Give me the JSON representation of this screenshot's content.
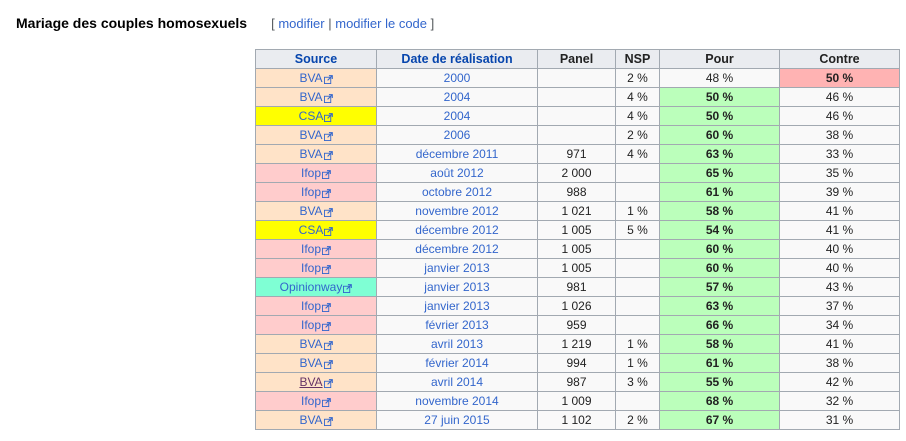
{
  "section": {
    "heading": "Mariage des couples homosexuels",
    "edit_open": "[",
    "edit_link": "modifier",
    "edit_sep": "|",
    "edit_code_link": "modifier le code",
    "edit_close": "]"
  },
  "colors": {
    "source_bva": "#ffe3c8",
    "source_csa": "#ffff00",
    "source_ifop": "#ffcccc",
    "source_opinionway": "#7fffd4",
    "pour_win": "#bbffbb",
    "contre_win": "#ffb3b3",
    "link": "#3366cc",
    "visited_link": "#663366"
  },
  "table": {
    "headers": {
      "source": "Source",
      "date": "Date de réalisation",
      "panel": "Panel",
      "nsp": "NSP",
      "pour": "Pour",
      "contre": "Contre"
    },
    "rows": [
      {
        "source": "BVA",
        "src": "bva",
        "date": "2000",
        "panel": "",
        "nsp": "2 %",
        "pour": "48 %",
        "contre": "50 %",
        "winner": "contre"
      },
      {
        "source": "BVA",
        "src": "bva",
        "date": "2004",
        "panel": "",
        "nsp": "4 %",
        "pour": "50 %",
        "contre": "46 %",
        "winner": "pour"
      },
      {
        "source": "CSA",
        "src": "csa",
        "date": "2004",
        "panel": "",
        "nsp": "4 %",
        "pour": "50 %",
        "contre": "46 %",
        "winner": "pour"
      },
      {
        "source": "BVA",
        "src": "bva",
        "date": "2006",
        "panel": "",
        "nsp": "2 %",
        "pour": "60 %",
        "contre": "38 %",
        "winner": "pour"
      },
      {
        "source": "BVA",
        "src": "bva",
        "date": "décembre 2011",
        "panel": "971",
        "nsp": "4 %",
        "pour": "63 %",
        "contre": "33 %",
        "winner": "pour"
      },
      {
        "source": "Ifop",
        "src": "ifop",
        "date": "août 2012",
        "panel": "2 000",
        "nsp": "",
        "pour": "65 %",
        "contre": "35 %",
        "winner": "pour"
      },
      {
        "source": "Ifop",
        "src": "ifop",
        "date": "octobre 2012",
        "panel": "988",
        "nsp": "",
        "pour": "61 %",
        "contre": "39 %",
        "winner": "pour"
      },
      {
        "source": "BVA",
        "src": "bva",
        "date": "novembre 2012",
        "panel": "1 021",
        "nsp": "1 %",
        "pour": "58 %",
        "contre": "41 %",
        "winner": "pour"
      },
      {
        "source": "CSA",
        "src": "csa",
        "date": "décembre 2012",
        "panel": "1 005",
        "nsp": "5 %",
        "pour": "54 %",
        "contre": "41 %",
        "winner": "pour"
      },
      {
        "source": "Ifop",
        "src": "ifop",
        "date": "décembre 2012",
        "panel": "1 005",
        "nsp": "",
        "pour": "60 %",
        "contre": "40 %",
        "winner": "pour"
      },
      {
        "source": "Ifop",
        "src": "ifop",
        "date": "janvier 2013",
        "panel": "1 005",
        "nsp": "",
        "pour": "60 %",
        "contre": "40 %",
        "winner": "pour"
      },
      {
        "source": "Opinionway",
        "src": "opinionway",
        "date": "janvier 2013",
        "panel": "981",
        "nsp": "",
        "pour": "57 %",
        "contre": "43 %",
        "winner": "pour"
      },
      {
        "source": "Ifop",
        "src": "ifop",
        "date": "janvier 2013",
        "panel": "1 026",
        "nsp": "",
        "pour": "63 %",
        "contre": "37 %",
        "winner": "pour"
      },
      {
        "source": "Ifop",
        "src": "ifop",
        "date": "février 2013",
        "panel": "959",
        "nsp": "",
        "pour": "66 %",
        "contre": "34 %",
        "winner": "pour"
      },
      {
        "source": "BVA",
        "src": "bva",
        "date": "avril 2013",
        "panel": "1 219",
        "nsp": "1 %",
        "pour": "58 %",
        "contre": "41 %",
        "winner": "pour"
      },
      {
        "source": "BVA",
        "src": "bva",
        "date": "février 2014",
        "panel": "994",
        "nsp": "1 %",
        "pour": "61 %",
        "contre": "38 %",
        "winner": "pour"
      },
      {
        "source": "BVA",
        "src": "bva",
        "date": "avril 2014",
        "panel": "987",
        "nsp": "3 %",
        "pour": "55 %",
        "contre": "42 %",
        "winner": "pour",
        "visited": true
      },
      {
        "source": "Ifop",
        "src": "ifop",
        "date": "novembre 2014",
        "panel": "1 009",
        "nsp": "",
        "pour": "68 %",
        "contre": "32 %",
        "winner": "pour"
      },
      {
        "source": "BVA",
        "src": "bva",
        "date": "27 juin 2015",
        "panel": "1 102",
        "nsp": "2 %",
        "pour": "67 %",
        "contre": "31 %",
        "winner": "pour"
      }
    ]
  }
}
